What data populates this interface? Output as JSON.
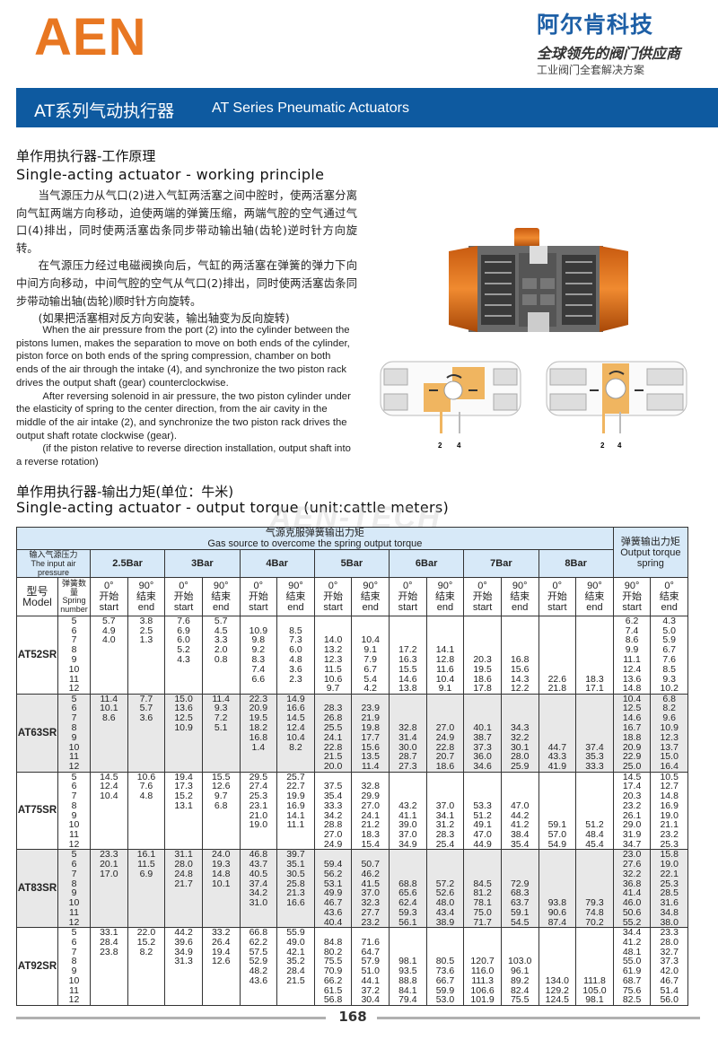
{
  "header": {
    "logo": "AEN",
    "brand_cn": "阿尔肯科技",
    "slogan": "全球领先的阀门供应商",
    "subslogan": "工业阀门全套解决方案"
  },
  "banner": {
    "title_cn": "AT系列气动执行器",
    "title_en": "AT Series Pneumatic Actuators"
  },
  "principle": {
    "heading_cn": "单作用执行器-工作原理",
    "heading_en": "Single-acting actuator - working principle",
    "para_cn": [
      "当气源压力从气口(2)进入气缸两活塞之间中腔时，使两活塞分离向气缸两端方向移动，迫使两端的弹簧压缩，两端气腔的空气通过气口(4)排出，同时使两活塞齿条同步带动输出轴(齿轮)逆时针方向旋转。",
      "在气源压力经过电磁阀换向后，气缸的两活塞在弹簧的弹力下向中间方向移动，中间气腔的空气从气口(2)排出，同时使两活塞齿条同步带动输出轴(齿轮)顺时针方向旋转。",
      "(如果把活塞相对反方向安装，输出轴变为反向旋转)"
    ],
    "para_en": [
      "When the air pressure from the port (2) into the cylinder  between the pistons lumen, makes the separation to move on both ends of the cylinder, piston force on both ends of the spring compression, chamber on both ends of the air through the intake (4), and synchronize the two piston rack drives the output shaft (gear) counterclockwise.",
      "After reversing solenoid in air pressure, the two piston cylinder under the elasticity of spring to the center direction, from the air cavity in the middle of the air intake (2), and synchronize the two piston rack drives the output shaft rotate clockwise (gear).",
      "(if the piston relative to reverse direction installation, output shaft into a reverse rotation)"
    ],
    "diagram_labels": {
      "port2": "2",
      "port4": "4"
    }
  },
  "torque": {
    "heading_cn": "单作用执行器-输出力矩(单位：牛米)",
    "heading_en": "Single-acting actuator - output torque (unit:cattle meters)",
    "watermark": "AEN-TECH",
    "table": {
      "group_cn": "气源克服弹簧输出力矩",
      "group_en": "Gas source to overcome the spring output torque",
      "spring_group_cn": "弹簧输出力矩",
      "spring_group_en": "Output torque spring",
      "pressure_cn": "输入气源压力",
      "pressure_en": "The input air pressure",
      "model_cn": "型号",
      "model_en": "Model",
      "spring_cn": "弹簧数量",
      "spring_en": "Spring number",
      "pressures": [
        "2.5Bar",
        "3Bar",
        "4Bar",
        "5Bar",
        "6Bar",
        "7Bar",
        "8Bar"
      ],
      "start": {
        "deg": "0°",
        "cn": "开始",
        "en": "start"
      },
      "end": {
        "deg": "90°",
        "cn": "结束",
        "en": "end"
      },
      "spring_start": {
        "deg": "90°",
        "cn": "开始",
        "en": "start"
      },
      "spring_end": {
        "deg": "0°",
        "cn": "结束",
        "en": "end"
      },
      "spring_numbers": [
        "5",
        "6",
        "7",
        "8",
        "9",
        "10",
        "11",
        "12"
      ],
      "models": [
        {
          "name": "AT52SR",
          "columns": [
            [
              "5.7",
              "4.9",
              "4.0",
              "",
              "",
              "",
              "",
              ""
            ],
            [
              "3.8",
              "2.5",
              "1.3",
              "",
              "",
              "",
              "",
              ""
            ],
            [
              "7.6",
              "6.9",
              "6.0",
              "5.2",
              "4.3",
              "",
              "",
              ""
            ],
            [
              "5.7",
              "4.5",
              "3.3",
              "2.0",
              "0.8",
              "",
              "",
              ""
            ],
            [
              "",
              "10.9",
              "9.8",
              "9.2",
              "8.3",
              "7.4",
              "6.6",
              ""
            ],
            [
              "",
              "8.5",
              "7.3",
              "6.0",
              "4.8",
              "3.6",
              "2.3",
              ""
            ],
            [
              "",
              "",
              "14.0",
              "13.2",
              "12.3",
              "11.5",
              "10.6",
              "9.7"
            ],
            [
              "",
              "",
              "10.4",
              "9.1",
              "7.9",
              "6.7",
              "5.4",
              "4.2"
            ],
            [
              "",
              "",
              "",
              "17.2",
              "16.3",
              "15.5",
              "14.6",
              "13.8"
            ],
            [
              "",
              "",
              "",
              "14.1",
              "12.8",
              "11.6",
              "10.4",
              "9.1"
            ],
            [
              "",
              "",
              "",
              "",
              "20.3",
              "19.5",
              "18.6",
              "17.8"
            ],
            [
              "",
              "",
              "",
              "",
              "16.8",
              "15.6",
              "14.3",
              "12.2"
            ],
            [
              "",
              "",
              "",
              "",
              "",
              "",
              "22.6",
              "21.8"
            ],
            [
              "",
              "",
              "",
              "",
              "",
              "",
              "18.3",
              "17.1"
            ],
            [
              "6.2",
              "7.4",
              "8.6",
              "9.9",
              "11.1",
              "12.4",
              "13.6",
              "14.8"
            ],
            [
              "4.3",
              "5.0",
              "5.9",
              "6.7",
              "7.6",
              "8.5",
              "9.3",
              "10.2"
            ]
          ]
        },
        {
          "name": "AT63SR",
          "columns": [
            [
              "11.4",
              "10.1",
              "8.6",
              "",
              "",
              "",
              "",
              ""
            ],
            [
              "7.7",
              "5.7",
              "3.6",
              "",
              "",
              "",
              "",
              ""
            ],
            [
              "15.0",
              "13.6",
              "12.5",
              "10.9",
              "",
              "",
              "",
              ""
            ],
            [
              "11.4",
              "9.3",
              "7.2",
              "5.1",
              "",
              "",
              "",
              ""
            ],
            [
              "22.3",
              "20.9",
              "19.5",
              "18.2",
              "16.8",
              "1.4",
              "",
              ""
            ],
            [
              "14.9",
              "16.6",
              "14.5",
              "12.4",
              "10.4",
              "8.2",
              "",
              ""
            ],
            [
              "",
              "28.3",
              "26.8",
              "25.5",
              "24.1",
              "22.8",
              "21.5",
              "20.0"
            ],
            [
              "",
              "23.9",
              "21.9",
              "19.8",
              "17.7",
              "15.6",
              "13.5",
              "11.4"
            ],
            [
              "",
              "",
              "",
              "32.8",
              "31.4",
              "30.0",
              "28.7",
              "27.3"
            ],
            [
              "",
              "",
              "",
              "27.0",
              "24.9",
              "22.8",
              "20.7",
              "18.6"
            ],
            [
              "",
              "",
              "",
              "40.1",
              "38.7",
              "37.3",
              "36.0",
              "34.6"
            ],
            [
              "",
              "",
              "",
              "34.3",
              "32.2",
              "30.1",
              "28.0",
              "25.9"
            ],
            [
              "",
              "",
              "",
              "",
              "",
              "44.7",
              "43.3",
              "41.9"
            ],
            [
              "",
              "",
              "",
              "",
              "",
              "37.4",
              "35.3",
              "33.3"
            ],
            [
              "10.4",
              "12.5",
              "14.6",
              "16.7",
              "18.8",
              "20.9",
              "22.9",
              "25.0"
            ],
            [
              "6.8",
              "8.2",
              "9.6",
              "10.9",
              "12.3",
              "13.7",
              "15.0",
              "16.4"
            ]
          ]
        },
        {
          "name": "AT75SR",
          "columns": [
            [
              "14.5",
              "12.4",
              "10.4",
              "",
              "",
              "",
              "",
              ""
            ],
            [
              "10.6",
              "7.6",
              "4.8",
              "",
              "",
              "",
              "",
              ""
            ],
            [
              "19.4",
              "17.3",
              "15.2",
              "13.1",
              "",
              "",
              "",
              ""
            ],
            [
              "15.5",
              "12.6",
              "9.7",
              "6.8",
              "",
              "",
              "",
              ""
            ],
            [
              "29.5",
              "27.4",
              "25.3",
              "23.1",
              "21.0",
              "19.0",
              "",
              ""
            ],
            [
              "25.7",
              "22.7",
              "19.9",
              "16.9",
              "14.1",
              "11.1",
              "",
              ""
            ],
            [
              "",
              "37.5",
              "35.4",
              "33.3",
              "34.2",
              "28.8",
              "27.0",
              "24.9"
            ],
            [
              "",
              "32.8",
              "29.9",
              "27.0",
              "24.1",
              "21.2",
              "18.3",
              "15.4"
            ],
            [
              "",
              "",
              "",
              "43.2",
              "41.1",
              "39.0",
              "37.0",
              "34.9"
            ],
            [
              "",
              "",
              "",
              "37.0",
              "34.1",
              "31.2",
              "28.3",
              "25.4"
            ],
            [
              "",
              "",
              "",
              "53.3",
              "51.2",
              "49.1",
              "47.0",
              "44.9"
            ],
            [
              "",
              "",
              "",
              "47.0",
              "44.2",
              "41.2",
              "38.4",
              "35.4"
            ],
            [
              "",
              "",
              "",
              "",
              "",
              "59.1",
              "57.0",
              "54.9"
            ],
            [
              "",
              "",
              "",
              "",
              "",
              "51.2",
              "48.4",
              "45.4"
            ],
            [
              "14.5",
              "17.4",
              "20.3",
              "23.2",
              "26.1",
              "29.0",
              "31.9",
              "34.7"
            ],
            [
              "10.5",
              "12.7",
              "14.8",
              "16.9",
              "19.0",
              "21.1",
              "23.2",
              "25.3"
            ]
          ]
        },
        {
          "name": "AT83SR",
          "columns": [
            [
              "23.3",
              "20.1",
              "17.0",
              "",
              "",
              "",
              "",
              ""
            ],
            [
              "16.1",
              "11.5",
              "6.9",
              "",
              "",
              "",
              "",
              ""
            ],
            [
              "31.1",
              "28.0",
              "24.8",
              "21.7",
              "",
              "",
              "",
              ""
            ],
            [
              "24.0",
              "19.3",
              "14.8",
              "10.1",
              "",
              "",
              "",
              ""
            ],
            [
              "46.8",
              "43.7",
              "40.5",
              "37.4",
              "34.2",
              "31.0",
              "",
              ""
            ],
            [
              "39.7",
              "35.1",
              "30.5",
              "25.8",
              "21.3",
              "16.6",
              "",
              ""
            ],
            [
              "",
              "59.4",
              "56.2",
              "53.1",
              "49.9",
              "46.7",
              "43.6",
              "40.4"
            ],
            [
              "",
              "50.7",
              "46.2",
              "41.5",
              "37.0",
              "32.3",
              "27.7",
              "23.2"
            ],
            [
              "",
              "",
              "",
              "68.8",
              "65.6",
              "62.4",
              "59.3",
              "56.1"
            ],
            [
              "",
              "",
              "",
              "57.2",
              "52.6",
              "48.0",
              "43.4",
              "38.9"
            ],
            [
              "",
              "",
              "",
              "84.5",
              "81.2",
              "78.1",
              "75.0",
              "71.7"
            ],
            [
              "",
              "",
              "",
              "72.9",
              "68.3",
              "63.7",
              "59.1",
              "54.5"
            ],
            [
              "",
              "",
              "",
              "",
              "",
              "93.8",
              "90.6",
              "87.4"
            ],
            [
              "",
              "",
              "",
              "",
              "",
              "79.3",
              "74.8",
              "70.2"
            ],
            [
              "23.0",
              "27.6",
              "32.2",
              "36.8",
              "41.4",
              "46.0",
              "50.6",
              "55.2"
            ],
            [
              "15.8",
              "19.0",
              "22.1",
              "25.3",
              "28.5",
              "31.6",
              "34.8",
              "38.0"
            ]
          ]
        },
        {
          "name": "AT92SR",
          "columns": [
            [
              "33.1",
              "28.4",
              "23.8",
              "",
              "",
              "",
              "",
              ""
            ],
            [
              "22.0",
              "15.2",
              "8.2",
              "",
              "",
              "",
              "",
              ""
            ],
            [
              "44.2",
              "39.6",
              "34.9",
              "31.3",
              "",
              "",
              "",
              ""
            ],
            [
              "33.2",
              "26.4",
              "19.4",
              "12.6",
              "",
              "",
              "",
              ""
            ],
            [
              "66.8",
              "62.2",
              "57.5",
              "52.9",
              "48.2",
              "43.6",
              "",
              ""
            ],
            [
              "55.9",
              "49.0",
              "42.1",
              "35.2",
              "28.4",
              "21.5",
              "",
              ""
            ],
            [
              "",
              "84.8",
              "80.2",
              "75.5",
              "70.9",
              "66.2",
              "61.5",
              "56.8"
            ],
            [
              "",
              "71.6",
              "64.7",
              "57.9",
              "51.0",
              "44.1",
              "37.2",
              "30.4"
            ],
            [
              "",
              "",
              "",
              "98.1",
              "93.5",
              "88.8",
              "84.1",
              "79.4"
            ],
            [
              "",
              "",
              "",
              "80.5",
              "73.6",
              "66.7",
              "59.9",
              "53.0"
            ],
            [
              "",
              "",
              "",
              "120.7",
              "116.0",
              "111.3",
              "106.6",
              "101.9"
            ],
            [
              "",
              "",
              "",
              "103.0",
              "96.1",
              "89.2",
              "82.4",
              "75.5"
            ],
            [
              "",
              "",
              "",
              "",
              "",
              "134.0",
              "129.2",
              "124.5"
            ],
            [
              "",
              "",
              "",
              "",
              "",
              "111.8",
              "105.0",
              "98.1"
            ],
            [
              "34.4",
              "41.2",
              "48.1",
              "55.0",
              "61.9",
              "68.7",
              "75.6",
              "82.5"
            ],
            [
              "23.3",
              "28.0",
              "32.7",
              "37.3",
              "42.0",
              "46.7",
              "51.4",
              "56.0"
            ]
          ]
        }
      ]
    }
  },
  "footer": {
    "page_number": "168"
  },
  "colors": {
    "brand_orange": "#e87722",
    "brand_blue": "#1d5fa6",
    "banner": "#0e5aa0",
    "table_header": "#d7e9f8",
    "row_shade": "#e8e8e8"
  }
}
